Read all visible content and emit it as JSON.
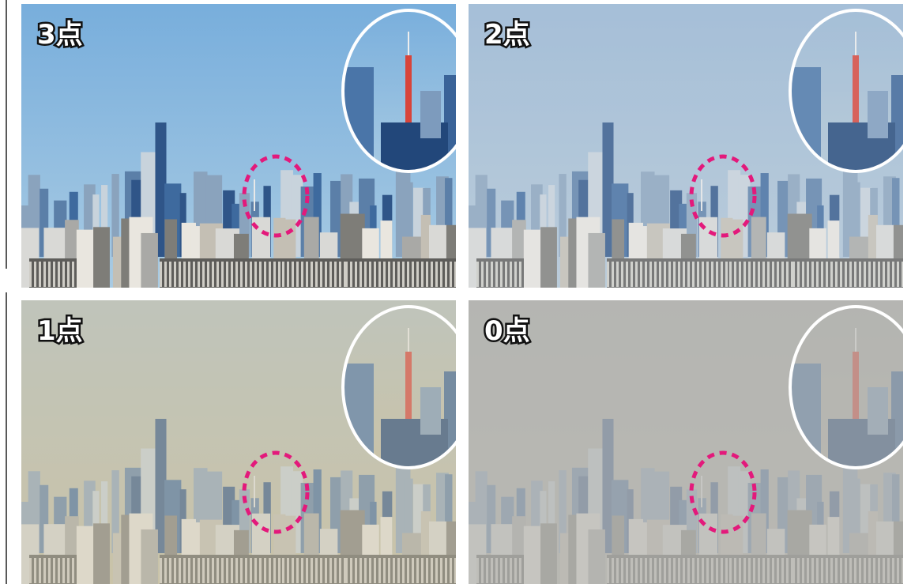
{
  "panels": [
    {
      "label": "3点"
    },
    {
      "label": "2点"
    },
    {
      "label": "1点"
    },
    {
      "label": "0点"
    }
  ]
}
